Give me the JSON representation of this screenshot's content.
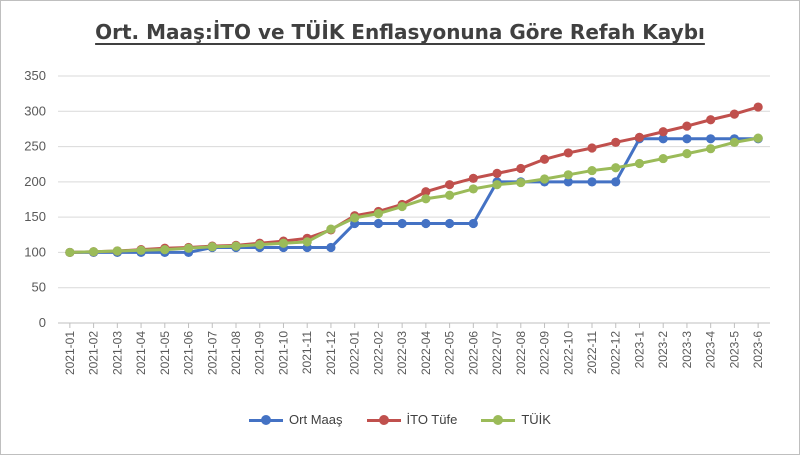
{
  "chart_data": {
    "type": "line",
    "title": "Ort. Maaş:İTO ve TÜİK Enflasyonuna Göre Refah Kaybı",
    "xlabel": "",
    "ylabel": "",
    "ylim": [
      0,
      350
    ],
    "yticks": [
      0,
      50,
      100,
      150,
      200,
      250,
      300,
      350
    ],
    "grid": true,
    "legend_position": "bottom",
    "categories": [
      "2021-01",
      "2021-02",
      "2021-03",
      "2021-04",
      "2021-05",
      "2021-06",
      "2021-07",
      "2021-08",
      "2021-09",
      "2021-10",
      "2021-11",
      "2021-12",
      "2022-01",
      "2022-02",
      "2022-03",
      "2022-04",
      "2022-05",
      "2022-06",
      "2022-07",
      "2022-08",
      "2022-09",
      "2022-10",
      "2022-11",
      "2022-12",
      "2023-1",
      "2023-2",
      "2023-3",
      "2023-4",
      "2023-5",
      "2023-6"
    ],
    "series": [
      {
        "name": "Ort Maaş",
        "color": "#4472c4",
        "values": [
          100,
          100,
          100,
          100,
          100,
          100,
          107,
          107,
          107,
          107,
          107,
          107,
          141,
          141,
          141,
          141,
          141,
          141,
          200,
          200,
          200,
          200,
          200,
          200,
          261,
          261,
          261,
          261,
          261,
          261
        ]
      },
      {
        "name": "İTO Tüfe",
        "color": "#c0504d",
        "values": [
          100,
          101,
          102,
          104,
          106,
          107,
          109,
          110,
          113,
          116,
          120,
          132,
          152,
          158,
          168,
          186,
          196,
          205,
          212,
          219,
          232,
          241,
          248,
          256,
          263,
          271,
          279,
          288,
          296,
          306
        ]
      },
      {
        "name": "TÜİK",
        "color": "#9bbb59",
        "values": [
          100,
          101,
          102,
          103,
          104,
          106,
          108,
          109,
          111,
          113,
          115,
          133,
          149,
          155,
          165,
          176,
          181,
          190,
          196,
          199,
          204,
          210,
          216,
          220,
          226,
          233,
          240,
          247,
          256,
          262
        ]
      }
    ]
  }
}
